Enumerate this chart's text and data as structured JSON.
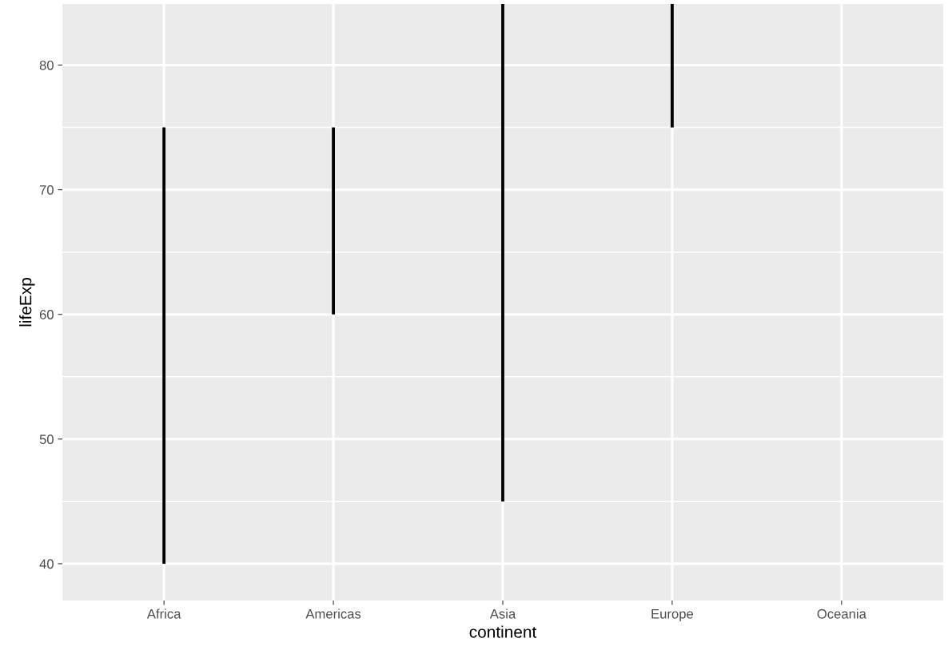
{
  "chart_data": {
    "type": "bar",
    "xlabel": "continent",
    "ylabel": "lifeExp",
    "categories": [
      "Africa",
      "Americas",
      "Asia",
      "Europe",
      "Oceania"
    ],
    "base": [
      40,
      60,
      45,
      75,
      null
    ],
    "values": [
      35,
      15,
      39.9,
      9.9,
      null
    ],
    "color": "#000000",
    "ylim": [
      37.05,
      84.9
    ],
    "yticks": [
      40,
      50,
      60,
      70,
      80
    ],
    "grid": true
  }
}
